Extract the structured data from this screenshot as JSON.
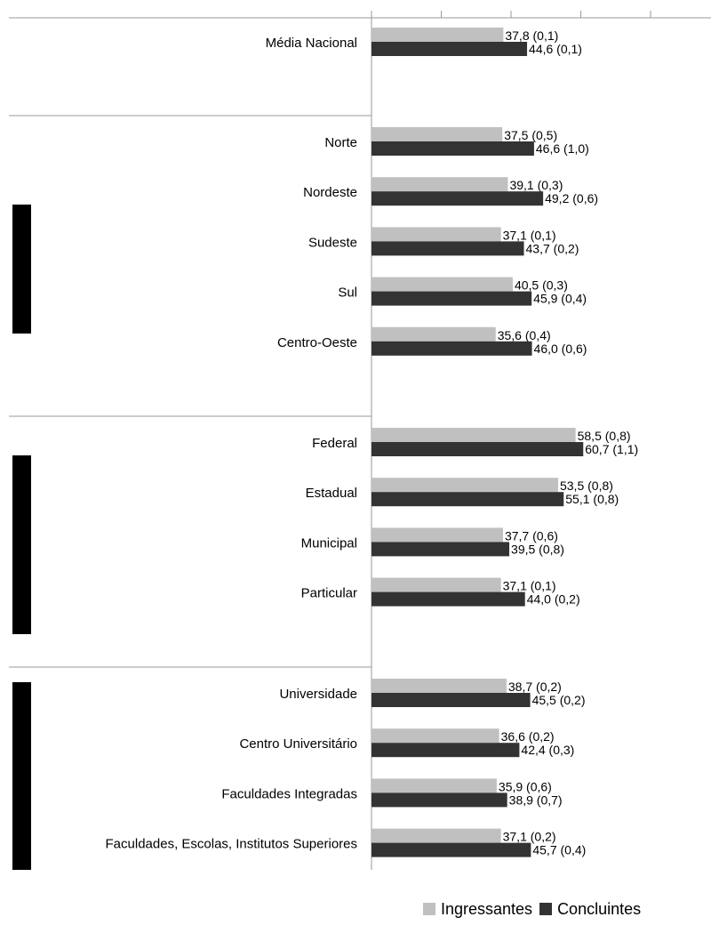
{
  "chart_data": {
    "type": "bar",
    "orientation": "horizontal",
    "xlim": [
      0,
      80
    ],
    "grid": false,
    "legend_position": "bottom-right",
    "series": [
      {
        "name": "Ingressantes",
        "color": "#c0c0c0"
      },
      {
        "name": "Concluintes",
        "color": "#333333"
      }
    ],
    "groups": [
      {
        "categories": [
          {
            "label": "Média Nacional",
            "values": [
              37.8,
              44.6
            ],
            "labels": [
              "37,8 (0,1)",
              "44,6 (0,1)"
            ]
          }
        ]
      },
      {
        "categories": [
          {
            "label": "Norte",
            "values": [
              37.5,
              46.6
            ],
            "labels": [
              "37,5 (0,5)",
              "46,6 (1,0)"
            ]
          },
          {
            "label": "Nordeste",
            "values": [
              39.1,
              49.2
            ],
            "labels": [
              "39,1 (0,3)",
              "49,2 (0,6)"
            ]
          },
          {
            "label": "Sudeste",
            "values": [
              37.1,
              43.7
            ],
            "labels": [
              "37,1 (0,1)",
              "43,7 (0,2)"
            ]
          },
          {
            "label": "Sul",
            "values": [
              40.5,
              45.9
            ],
            "labels": [
              "40,5 (0,3)",
              "45,9 (0,4)"
            ]
          },
          {
            "label": "Centro-Oeste",
            "values": [
              35.6,
              46.0
            ],
            "labels": [
              "35,6 (0,4)",
              "46,0 (0,6)"
            ]
          }
        ]
      },
      {
        "categories": [
          {
            "label": "Federal",
            "values": [
              58.5,
              60.7
            ],
            "labels": [
              "58,5 (0,8)",
              "60,7 (1,1)"
            ]
          },
          {
            "label": "Estadual",
            "values": [
              53.5,
              55.1
            ],
            "labels": [
              "53,5 (0,8)",
              "55,1 (0,8)"
            ]
          },
          {
            "label": "Municipal",
            "values": [
              37.7,
              39.5
            ],
            "labels": [
              "37,7 (0,6)",
              "39,5 (0,8)"
            ]
          },
          {
            "label": "Particular",
            "values": [
              37.1,
              44.0
            ],
            "labels": [
              "37,1 (0,1)",
              "44,0 (0,2)"
            ]
          }
        ]
      },
      {
        "categories": [
          {
            "label": "Universidade",
            "values": [
              38.7,
              45.5
            ],
            "labels": [
              "38,7 (0,2)",
              "45,5 (0,2)"
            ]
          },
          {
            "label": "Centro Universitário",
            "values": [
              36.6,
              42.4
            ],
            "labels": [
              "36,6 (0,2)",
              "42,4 (0,3)"
            ]
          },
          {
            "label": "Faculdades Integradas",
            "values": [
              35.9,
              38.9
            ],
            "labels": [
              "35,9 (0,6)",
              "38,9 (0,7)"
            ]
          },
          {
            "label": "Faculdades, Escolas, Institutos Superiores",
            "values": [
              37.1,
              45.7
            ],
            "labels": [
              "37,1 (0,2)",
              "45,7 (0,4)"
            ]
          }
        ]
      }
    ]
  }
}
